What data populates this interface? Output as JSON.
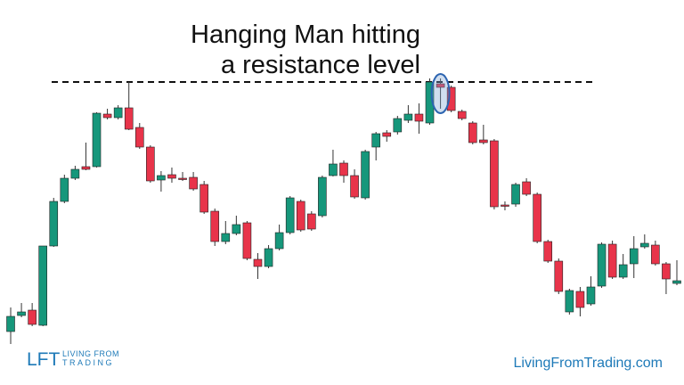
{
  "chart_data": {
    "type": "candlestick",
    "annotation_lines": [
      "Hanging Man hitting",
      "a resistance level"
    ],
    "resistance": 308,
    "highlight_index": 40,
    "up_color": "#16977b",
    "down_color": "#e8344a",
    "ylim": [
      0,
      400
    ],
    "open": [
      28,
      46,
      52,
      35,
      124,
      174,
      200,
      213,
      213,
      272,
      268,
      279,
      257,
      235,
      198,
      204,
      200,
      201,
      193,
      163,
      129,
      138,
      150,
      109,
      101,
      121,
      139,
      174,
      160,
      158,
      203,
      217,
      203,
      178,
      235,
      251,
      252,
      265,
      272,
      262,
      306,
      302,
      275,
      262,
      243,
      242,
      170,
      171,
      196,
      182,
      129,
      107,
      50,
      73,
      59,
      79,
      126,
      89,
      104,
      123,
      125,
      104,
      82
    ],
    "high": [
      55,
      60,
      60,
      124,
      178,
      204,
      214,
      240,
      274,
      278,
      282,
      308,
      262,
      237,
      208,
      212,
      207,
      207,
      197,
      166,
      152,
      158,
      152,
      116,
      125,
      148,
      180,
      176,
      163,
      203,
      232,
      220,
      210,
      232,
      252,
      254,
      270,
      282,
      284,
      312,
      312,
      304,
      277,
      264,
      260,
      244,
      174,
      195,
      200,
      184,
      131,
      110,
      76,
      78,
      90,
      128,
      130,
      115,
      135,
      137,
      130,
      106,
      108
    ],
    "low": [
      14,
      44,
      34,
      34,
      123,
      172,
      198,
      209,
      212,
      266,
      266,
      254,
      233,
      195,
      185,
      195,
      197,
      186,
      160,
      124,
      126,
      136,
      108,
      87,
      99,
      119,
      137,
      140,
      141,
      156,
      202,
      195,
      177,
      176,
      220,
      241,
      249,
      262,
      250,
      260,
      278,
      274,
      265,
      238,
      238,
      165,
      164,
      168,
      180,
      127,
      105,
      70,
      47,
      45,
      57,
      77,
      87,
      87,
      88,
      121,
      102,
      70,
      80
    ],
    "close": [
      45,
      50,
      36,
      124,
      174,
      200,
      210,
      210,
      273,
      268,
      279,
      255,
      235,
      197,
      203,
      200,
      199,
      188,
      162,
      129,
      138,
      148,
      110,
      101,
      121,
      139,
      178,
      142,
      143,
      201,
      216,
      203,
      179,
      230,
      250,
      247,
      267,
      272,
      264,
      308,
      302,
      276,
      267,
      240,
      240,
      168,
      169,
      193,
      182,
      129,
      107,
      73,
      74,
      55,
      78,
      126,
      89,
      103,
      121,
      127,
      104,
      87,
      85
    ]
  },
  "branding": {
    "logo": "LFT",
    "logo_line1": "LIVING FROM",
    "logo_line2": "TRADING",
    "website": "LivingFromTrading.com"
  }
}
